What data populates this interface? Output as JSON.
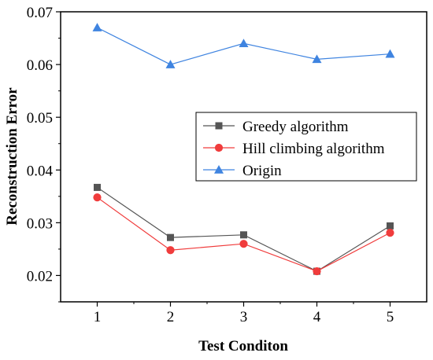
{
  "chart_data": {
    "type": "line",
    "title": "",
    "xlabel": "Test Conditon",
    "ylabel": "Reconstruction Error",
    "categories": [
      "1",
      "2",
      "3",
      "4",
      "5"
    ],
    "x": [
      1,
      2,
      3,
      4,
      5
    ],
    "xlim": [
      0.5,
      5.5
    ],
    "ylim": [
      0.015,
      0.07
    ],
    "yticks": [
      "0.02",
      "0.03",
      "0.04",
      "0.05",
      "0.06",
      "0.07"
    ],
    "yticks_values": [
      0.02,
      0.03,
      0.04,
      0.05,
      0.06,
      0.07
    ],
    "grid": false,
    "legend_position": "center-right",
    "series": [
      {
        "name": "Greedy algorithm",
        "values": [
          0.0367,
          0.0272,
          0.0277,
          0.0208,
          0.0294
        ],
        "color": "#555555",
        "marker": "square"
      },
      {
        "name": "Hill climbing algorithm",
        "values": [
          0.0348,
          0.0248,
          0.026,
          0.0208,
          0.0281
        ],
        "color": "#f03c3c",
        "marker": "circle"
      },
      {
        "name": "Origin",
        "values": [
          0.067,
          0.06,
          0.064,
          0.061,
          0.062
        ],
        "color": "#3f84e0",
        "marker": "triangle"
      }
    ]
  }
}
